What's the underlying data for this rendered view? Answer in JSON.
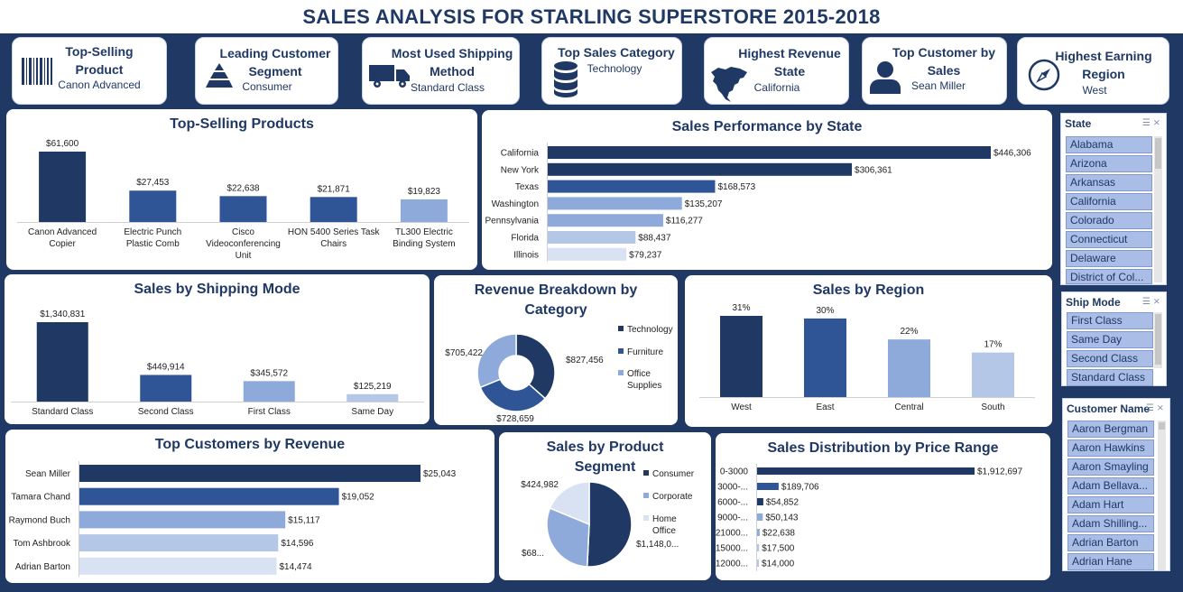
{
  "title": "SALES ANALYSIS FOR STARLING SUPERSTORE 2015-2018",
  "kpis": [
    {
      "title": "Top-Selling Product",
      "value": "Canon Advanced",
      "icon": "barcode-icon"
    },
    {
      "title": "Leading Customer Segment",
      "value": "Consumer",
      "icon": "pyramid-icon"
    },
    {
      "title": "Most Used Shipping Method",
      "value": "Standard Class",
      "icon": "truck-icon"
    },
    {
      "title": "Top Sales Category",
      "value": "Technology",
      "icon": "database-icon"
    },
    {
      "title": "Highest Revenue State",
      "value": "California",
      "icon": "north-america-map-icon"
    },
    {
      "title": "Top Customer by Sales",
      "value": "Sean Miller",
      "icon": "person-icon"
    },
    {
      "title": "Highest Earning Region",
      "value": "West",
      "icon": "compass-icon"
    }
  ],
  "colors": {
    "navy": "#1f3864",
    "blue": "#2f5597",
    "mid": "#8eaadb",
    "light": "#b4c7e7",
    "pale": "#d9e2f3"
  },
  "chart_data": [
    {
      "id": "top-products",
      "type": "bar",
      "title": "Top-Selling Products",
      "categories": [
        "Canon Advanced Copier",
        "Electric Punch Plastic Comb",
        "Cisco Videoconferencing Unit",
        "HON 5400 Series Task Chairs",
        "TL300 Electric Binding System"
      ],
      "values": [
        61600,
        27453,
        22638,
        21871,
        19823
      ],
      "labels": [
        "$61,600",
        "$27,453",
        "$22,638",
        "$21,871",
        "$19,823"
      ],
      "colors": [
        "#1f3864",
        "#2f5597",
        "#2f5597",
        "#2f5597",
        "#8eaadb"
      ]
    },
    {
      "id": "state-sales",
      "type": "bar",
      "orientation": "horizontal",
      "title": "Sales Performance by State",
      "categories": [
        "California",
        "New York",
        "Texas",
        "Washington",
        "Pennsylvania",
        "Florida",
        "Illinois"
      ],
      "values": [
        446306,
        306361,
        168573,
        135207,
        116277,
        88437,
        79237
      ],
      "labels": [
        "$446,306",
        "$306,361",
        "$168,573",
        "$135,207",
        "$116,277",
        "$88,437",
        "$79,237"
      ],
      "colors": [
        "#1f3864",
        "#1f3864",
        "#2f5597",
        "#8eaadb",
        "#8eaadb",
        "#b4c7e7",
        "#d9e2f3"
      ]
    },
    {
      "id": "ship-mode",
      "type": "bar",
      "title": "Sales by Shipping Mode",
      "categories": [
        "Standard Class",
        "Second Class",
        "First Class",
        "Same Day"
      ],
      "values": [
        1340831,
        449914,
        345572,
        125219
      ],
      "labels": [
        "$1,340,831",
        "$449,914",
        "$345,572",
        "$125,219"
      ],
      "colors": [
        "#1f3864",
        "#2f5597",
        "#8eaadb",
        "#b4c7e7"
      ]
    },
    {
      "id": "category",
      "type": "pie",
      "donut": true,
      "title": "Revenue Breakdown by Category",
      "categories": [
        "Technology",
        "Furniture",
        "Office Supplies"
      ],
      "values": [
        827456,
        728659,
        705422
      ],
      "labels": [
        "$827,456",
        "$728,659",
        "$705,422"
      ],
      "colors": [
        "#1f3864",
        "#2f5597",
        "#8eaadb"
      ]
    },
    {
      "id": "region",
      "type": "bar",
      "title": "Sales by Region",
      "categories": [
        "West",
        "East",
        "Central",
        "South"
      ],
      "values": [
        31,
        30,
        22,
        17
      ],
      "labels": [
        "31%",
        "30%",
        "22%",
        "17%"
      ],
      "colors": [
        "#1f3864",
        "#2f5597",
        "#8eaadb",
        "#b4c7e7"
      ]
    },
    {
      "id": "top-customers",
      "type": "bar",
      "orientation": "horizontal",
      "title": "Top Customers by Revenue",
      "categories": [
        "Sean Miller",
        "Tamara Chand",
        "Raymond Buch",
        "Tom Ashbrook",
        "Adrian Barton"
      ],
      "values": [
        25043,
        19052,
        15117,
        14596,
        14474
      ],
      "labels": [
        "$25,043",
        "$19,052",
        "$15,117",
        "$14,596",
        "$14,474"
      ],
      "colors": [
        "#1f3864",
        "#2f5597",
        "#8eaadb",
        "#b4c7e7",
        "#d9e2f3"
      ]
    },
    {
      "id": "segment",
      "type": "pie",
      "title": "Sales by Product Segment",
      "categories": [
        "Consumer",
        "Corporate",
        "Home Office"
      ],
      "values": [
        1148000,
        688000,
        424982
      ],
      "labels": [
        "$1,148,0...",
        "$68...",
        "$424,982"
      ],
      "colors": [
        "#1f3864",
        "#8eaadb",
        "#d9e2f3"
      ]
    },
    {
      "id": "price-range",
      "type": "bar",
      "orientation": "horizontal",
      "title": "Sales Distribution by Price Range",
      "categories": [
        "0-3000",
        "3000-...",
        "6000-...",
        "9000-...",
        "21000...",
        "15000...",
        "12000..."
      ],
      "values": [
        1912697,
        189706,
        54852,
        50143,
        22638,
        17500,
        14000
      ],
      "labels": [
        "$1,912,697",
        "$189,706",
        "$54,852",
        "$50,143",
        "$22,638",
        "$17,500",
        "$14,000"
      ],
      "colors": [
        "#1f3864",
        "#2f5597",
        "#1f3864",
        "#8eaadb",
        "#8eaadb",
        "#b4c7e7",
        "#b4c7e7"
      ]
    }
  ],
  "slicers": {
    "state": {
      "header": "State",
      "items": [
        "Alabama",
        "Arizona",
        "Arkansas",
        "California",
        "Colorado",
        "Connecticut",
        "Delaware",
        "District of Col..."
      ]
    },
    "shipmode": {
      "header": "Ship Mode",
      "items": [
        "First Class",
        "Same Day",
        "Second Class",
        "Standard Class"
      ]
    },
    "customer": {
      "header": "Customer Name",
      "items": [
        "Aaron Bergman",
        "Aaron Hawkins",
        "Aaron Smayling",
        "Adam Bellava...",
        "Adam Hart",
        "Adam Shilling...",
        "Adrian Barton",
        "Adrian Hane"
      ]
    }
  }
}
